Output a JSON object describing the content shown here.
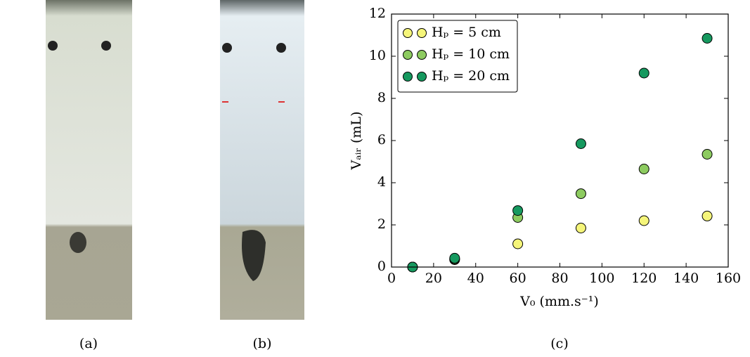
{
  "panel_labels": [
    "(a)",
    "(b)",
    "(c)"
  ],
  "chart_data": {
    "type": "scatter",
    "xlabel": "V₀ (mm.s⁻¹)",
    "ylabel": "Vₐᵢᵣ (mL)",
    "x": [
      10,
      30,
      60,
      90,
      120,
      150
    ],
    "series": [
      {
        "name": "Hₚ = 5 cm",
        "color": "#f5f57a",
        "values": [
          0,
          0.35,
          1.1,
          1.85,
          2.2,
          2.42
        ]
      },
      {
        "name": "Hₚ = 10 cm",
        "color": "#8dcb60",
        "values": [
          0,
          0.38,
          2.35,
          3.48,
          4.65,
          5.35
        ]
      },
      {
        "name": "Hₚ = 20 cm",
        "color": "#16995f",
        "values": [
          0,
          0.42,
          2.68,
          5.85,
          9.2,
          10.85
        ]
      }
    ],
    "xlim": [
      0,
      160
    ],
    "xticks": [
      0,
      20,
      40,
      60,
      80,
      100,
      120,
      140,
      160
    ],
    "ylim": [
      0,
      12
    ],
    "yticks": [
      0,
      2,
      4,
      6,
      8,
      10,
      12
    ],
    "legend": "upper left"
  }
}
